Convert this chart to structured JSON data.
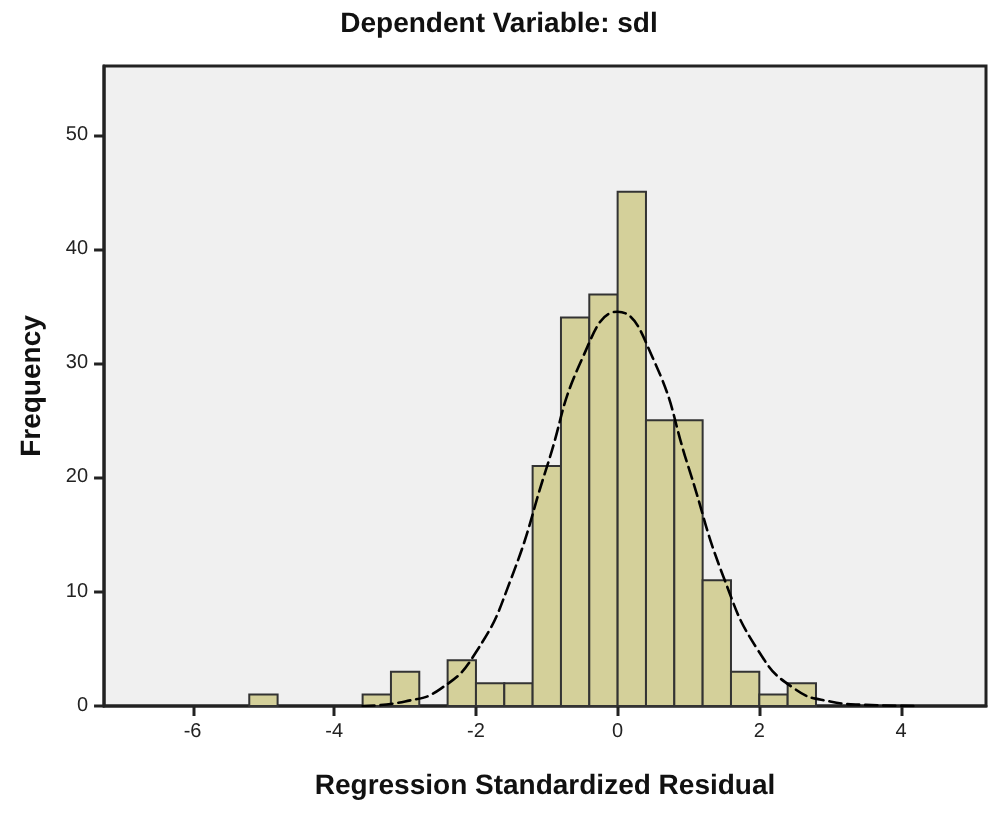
{
  "chart_data": {
    "type": "histogram",
    "title": "Dependent Variable: sdl",
    "xlabel": "Regression Standardized Residual",
    "ylabel": "Frequency",
    "bins": [
      -5.2,
      -4.8,
      -4.4,
      -4.0,
      -3.6,
      -3.2,
      -2.8,
      -2.4,
      -2.0,
      -1.6,
      -1.2,
      -0.8,
      -0.4,
      0,
      0.4,
      0.8,
      1.2,
      1.6,
      2.0,
      2.4,
      2.8
    ],
    "values": [
      1,
      0,
      0,
      0,
      1,
      3,
      0,
      4,
      2,
      2,
      21,
      34,
      36,
      45,
      25,
      25,
      11,
      3,
      1,
      2
    ],
    "color": "#d4d09a",
    "series": [
      {
        "type": "line",
        "color": "#000000",
        "line_style": "dashed",
        "marker": "none",
        "x": [
          -3.6,
          -3.0,
          -2.5,
          -2.0,
          -1.5,
          -1.0,
          -0.5,
          0,
          0.5,
          1.0,
          1.5,
          2.0,
          2.5,
          3.0,
          3.5,
          4.2
        ],
        "values": [
          0,
          0.4,
          1.5,
          4.7,
          11.2,
          20.9,
          30.4,
          34.5,
          30.4,
          20.9,
          11.2,
          4.7,
          1.5,
          0.4,
          0.1,
          0
        ]
      }
    ],
    "xlim": [
      -7.25,
      5.2
    ],
    "ylim": [
      0,
      56
    ],
    "xticks": [
      -6,
      -4,
      -2,
      0,
      2,
      4
    ],
    "yticks": [
      0,
      10,
      20,
      30,
      40,
      50
    ]
  }
}
